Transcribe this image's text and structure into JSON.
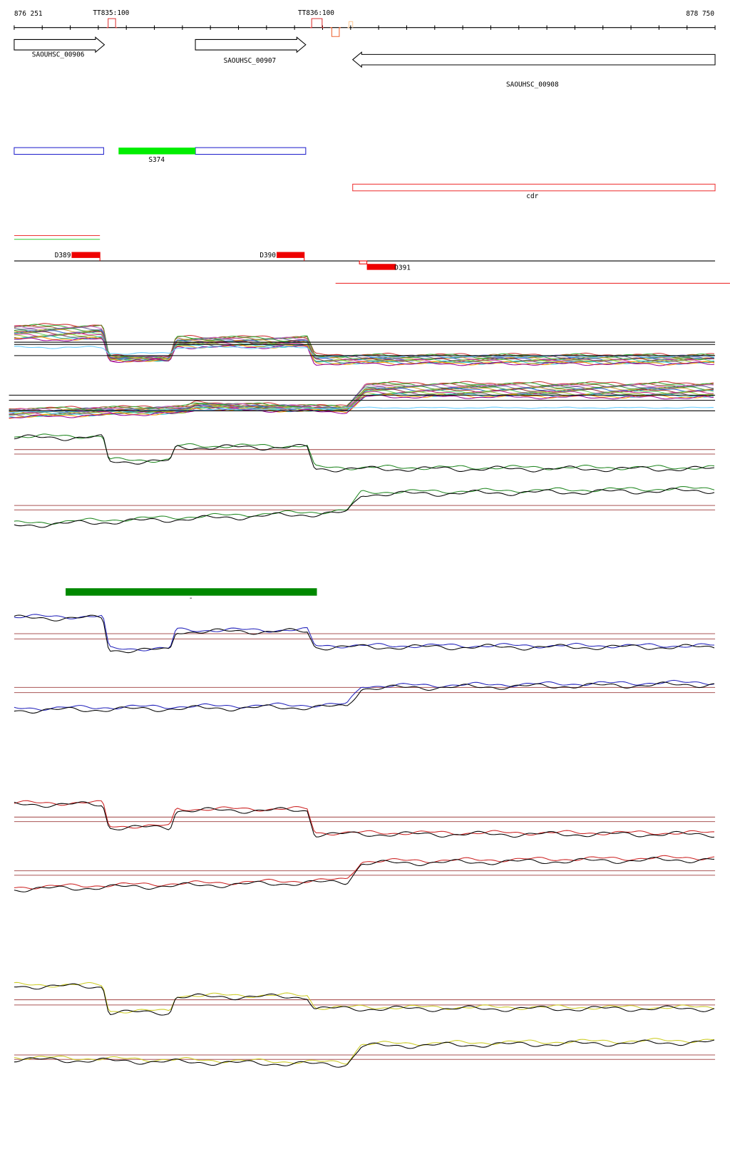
{
  "ruler": {
    "start": "876 251",
    "end": "878 750"
  },
  "terminators": [
    "TT835:100",
    "TT836:100"
  ],
  "genes": [
    "SAOUHSC_00906",
    "SAOUHSC_00907",
    "SAOUHSC_00908"
  ],
  "features": {
    "s_feature": "S374",
    "cdr": "cdr"
  },
  "d_features": [
    "D389",
    "D390",
    "D391"
  ],
  "marker": "-"
}
